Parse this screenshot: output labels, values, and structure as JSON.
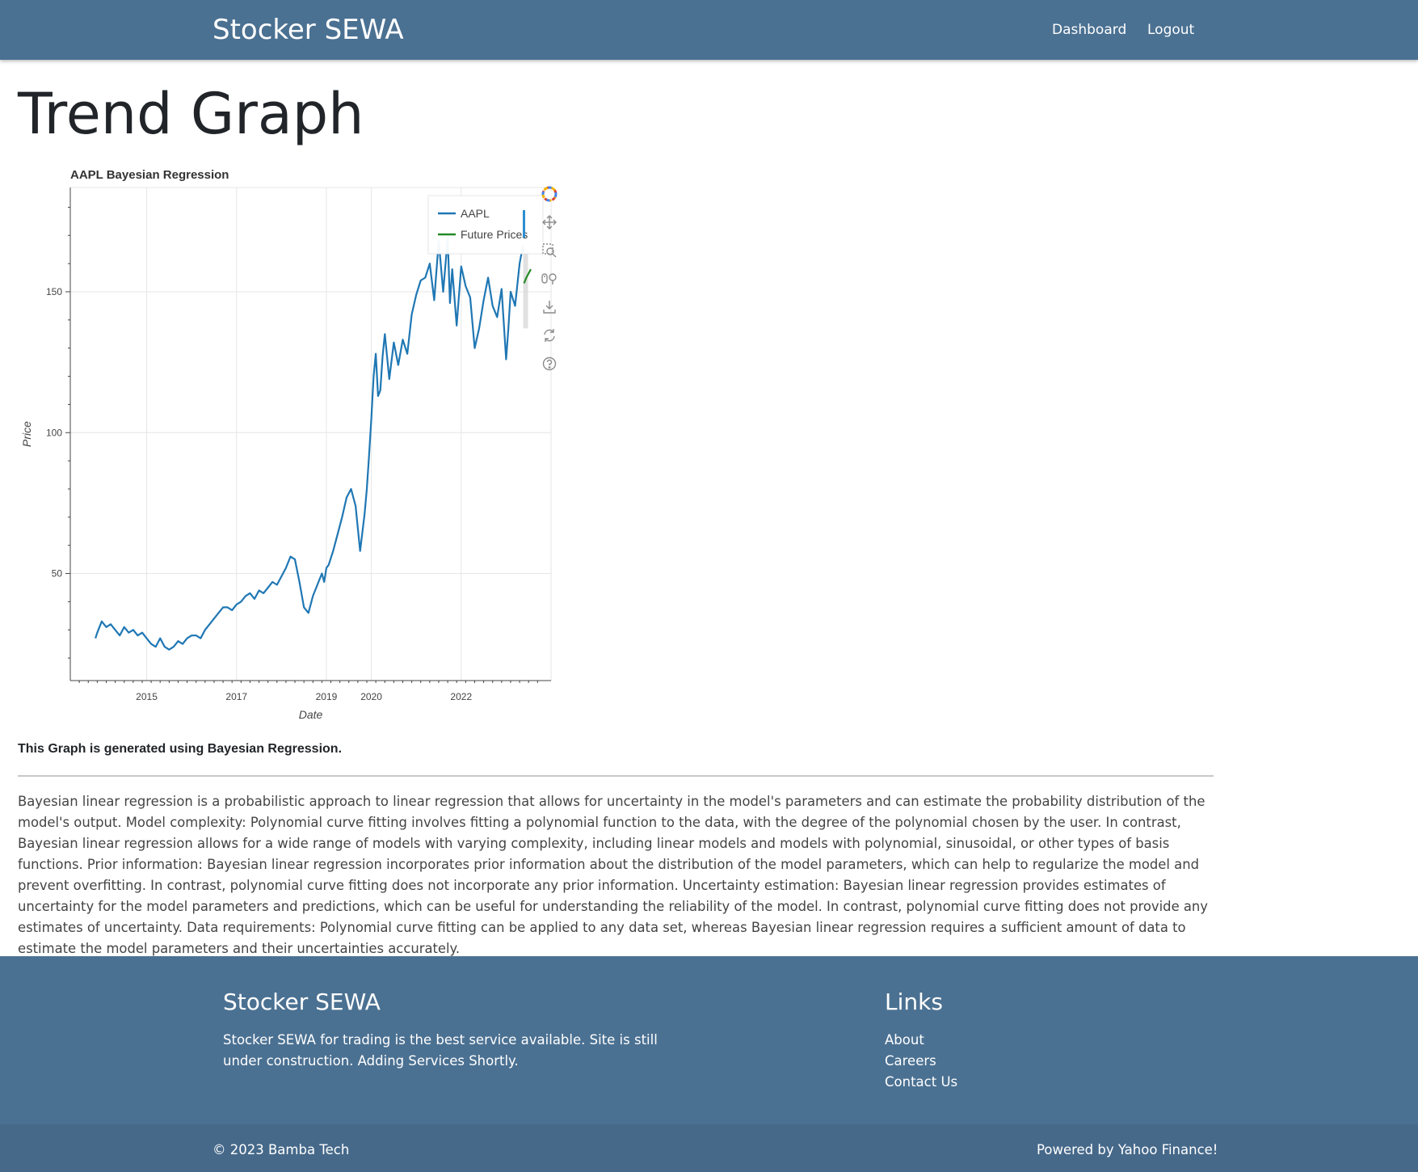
{
  "nav": {
    "brand": "Stocker SEWA",
    "links": [
      "Dashboard",
      "Logout"
    ]
  },
  "page": {
    "title": "Trend Graph",
    "caption": "This Graph is generated using Bayesian Regression.",
    "description": "Bayesian linear regression is a probabilistic approach to linear regression that allows for uncertainty in the model's parameters and can estimate the probability distribution of the model's output. Model complexity: Polynomial curve fitting involves fitting a polynomial function to the data, with the degree of the polynomial chosen by the user. In contrast, Bayesian linear regression allows for a wide range of models with varying complexity, including linear models and models with polynomial, sinusoidal, or other types of basis functions. Prior information: Bayesian linear regression incorporates prior information about the distribution of the model parameters, which can help to regularize the model and prevent overfitting. In contrast, polynomial curve fitting does not incorporate any prior information. Uncertainty estimation: Bayesian linear regression provides estimates of uncertainty for the model parameters and predictions, which can be useful for understanding the reliability of the model. In contrast, polynomial curve fitting does not provide any estimates of uncertainty. Data requirements: Polynomial curve fitting can be applied to any data set, whereas Bayesian linear regression requires a sufficient amount of data to estimate the model parameters and their uncertainties accurately."
  },
  "toolbar": {
    "icons": [
      "bokeh-logo-icon",
      "pan-icon",
      "box-zoom-icon",
      "wheel-zoom-icon",
      "save-icon",
      "reset-icon",
      "help-icon"
    ]
  },
  "chart_data": {
    "type": "line",
    "title": "AAPL Bayesian Regression",
    "xlabel": "Date",
    "ylabel": "Price",
    "xlim": [
      2013.3,
      2024.0
    ],
    "ylim": [
      12,
      187
    ],
    "x_ticks": [
      2015,
      2017,
      2019,
      2020,
      2022
    ],
    "y_ticks": [
      50,
      100,
      150
    ],
    "grid": true,
    "legend_position": "top-right",
    "series": [
      {
        "name": "AAPL",
        "color": "#1f77b4",
        "x": [
          2013.86,
          2013.9,
          2013.95,
          2014.0,
          2014.1,
          2014.2,
          2014.3,
          2014.4,
          2014.5,
          2014.6,
          2014.7,
          2014.8,
          2014.9,
          2015.0,
          2015.1,
          2015.2,
          2015.3,
          2015.4,
          2015.5,
          2015.6,
          2015.7,
          2015.8,
          2015.9,
          2016.0,
          2016.1,
          2016.2,
          2016.3,
          2016.4,
          2016.5,
          2016.6,
          2016.7,
          2016.8,
          2016.9,
          2017.0,
          2017.1,
          2017.2,
          2017.3,
          2017.4,
          2017.5,
          2017.6,
          2017.7,
          2017.8,
          2017.9,
          2018.0,
          2018.1,
          2018.2,
          2018.3,
          2018.4,
          2018.5,
          2018.6,
          2018.7,
          2018.8,
          2018.9,
          2018.95,
          2019.0,
          2019.05,
          2019.15,
          2019.25,
          2019.35,
          2019.45,
          2019.55,
          2019.65,
          2019.75,
          2019.85,
          2019.9,
          2019.95,
          2020.0,
          2020.05,
          2020.1,
          2020.15,
          2020.2,
          2020.25,
          2020.3,
          2020.4,
          2020.5,
          2020.6,
          2020.7,
          2020.8,
          2020.9,
          2021.0,
          2021.1,
          2021.2,
          2021.3,
          2021.4,
          2021.5,
          2021.6,
          2021.7,
          2021.75,
          2021.8,
          2021.9,
          2022.0,
          2022.1,
          2022.2,
          2022.3,
          2022.4,
          2022.5,
          2022.6,
          2022.7,
          2022.8,
          2022.9,
          2023.0,
          2023.05,
          2023.1,
          2023.2,
          2023.3,
          2023.37,
          2023.4
        ],
        "y": [
          27,
          29,
          31,
          33,
          31,
          32,
          30,
          28,
          31,
          29,
          30,
          28,
          29,
          27,
          25,
          24,
          27,
          24,
          23,
          24,
          26,
          25,
          27,
          28,
          28,
          27,
          30,
          32,
          34,
          36,
          38,
          38,
          37,
          39,
          40,
          42,
          43,
          41,
          44,
          43,
          45,
          47,
          46,
          49,
          52,
          56,
          55,
          47,
          38,
          36,
          42,
          46,
          50,
          47,
          52,
          53,
          58,
          64,
          70,
          77,
          80,
          74,
          58,
          71,
          80,
          92,
          105,
          120,
          128,
          113,
          115,
          127,
          135,
          119,
          132,
          124,
          133,
          128,
          142,
          149,
          154,
          155,
          160,
          147,
          168,
          150,
          169,
          146,
          158,
          138,
          159,
          152,
          148,
          130,
          137,
          147,
          155,
          145,
          141,
          151,
          126,
          137,
          150,
          145,
          160,
          166,
          164
        ]
      },
      {
        "name": "Future Prices",
        "color": "#228b22",
        "x": [
          2023.4,
          2023.45,
          2023.55
        ],
        "y": [
          153,
          155,
          158
        ]
      }
    ]
  },
  "footer": {
    "brand": "Stocker SEWA",
    "text": "Stocker SEWA for trading is the best service available. Site is still under construction. Adding Services Shortly.",
    "links_title": "Links",
    "links": [
      "About",
      "Careers",
      "Contact Us"
    ],
    "copyright": "© 2023 Bamba Tech",
    "powered": "Powered by Yahoo Finance!"
  }
}
